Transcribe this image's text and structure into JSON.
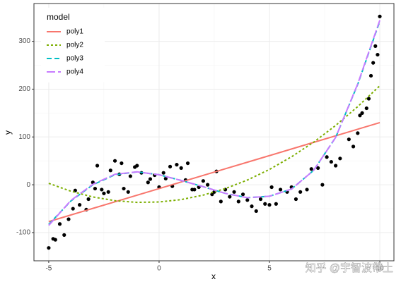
{
  "chart_data": {
    "type": "scatter",
    "x_label": "x",
    "y_label": "y",
    "xlim": [
      -5.67,
      10.64
    ],
    "ylim": [
      -159,
      379
    ],
    "xticks": [
      -5,
      0,
      5,
      10
    ],
    "yticks": [
      -100,
      0,
      100,
      200,
      300
    ],
    "grid": true,
    "legend_title": "model",
    "legend_position": "top-left",
    "point_color": "#000000",
    "points": {
      "x": [
        -5,
        -4.8,
        -4.7,
        -4.5,
        -4.3,
        -4.1,
        -3.9,
        -3.8,
        -3.6,
        -3.3,
        -3.2,
        -3,
        -2.9,
        -2.8,
        -2.6,
        -2.5,
        -2.3,
        -2.2,
        -2,
        -1.8,
        -1.7,
        -1.6,
        -1.4,
        -1.3,
        -1.1,
        -1,
        -0.8,
        -0.5,
        -0.4,
        -0.2,
        0,
        0.2,
        0.3,
        0.5,
        0.6,
        0.8,
        1,
        1.2,
        1.3,
        1.5,
        1.6,
        1.8,
        2,
        2.2,
        2.4,
        2.5,
        2.6,
        2.8,
        3,
        3.2,
        3.4,
        3.6,
        3.8,
        4,
        4.2,
        4.4,
        4.6,
        4.8,
        5,
        5.1,
        5.3,
        5.5,
        5.8,
        6,
        6.2,
        6.4,
        6.7,
        6.9,
        7.2,
        7.4,
        7.6,
        7.8,
        8,
        8.2,
        8.6,
        8.8,
        9,
        9.1,
        9.2,
        9.4,
        9.5,
        9.6,
        9.7,
        9.8,
        9.9,
        10
      ],
      "y": [
        -132,
        -113,
        -115,
        -82,
        -105,
        -72,
        -50,
        -12,
        -42,
        -52,
        -30,
        5,
        -8,
        40,
        -10,
        -18,
        -15,
        30,
        50,
        22,
        45,
        -8,
        -15,
        18,
        37,
        40,
        25,
        5,
        12,
        20,
        -5,
        25,
        13,
        38,
        -3,
        42,
        35,
        10,
        45,
        -10,
        -10,
        -5,
        8,
        0,
        -20,
        -15,
        28,
        -35,
        -10,
        -25,
        -15,
        -35,
        -20,
        -32,
        -45,
        -55,
        -30,
        -40,
        -42,
        -5,
        -40,
        -10,
        -15,
        -5,
        -30,
        -15,
        -10,
        33,
        35,
        0,
        58,
        48,
        40,
        55,
        95,
        80,
        108,
        145,
        150,
        160,
        180,
        228,
        255,
        290,
        272,
        352
      ]
    },
    "x": [
      -5,
      -4,
      -3,
      -2,
      -1,
      0,
      1,
      2,
      3,
      4,
      5,
      6,
      7,
      8,
      9,
      10
    ],
    "series": [
      {
        "name": "poly1",
        "color": "#F8766D",
        "dash": "solid",
        "values": [
          -77,
          -63.2,
          -49.4,
          -35.6,
          -21.8,
          -8,
          5.8,
          19.6,
          33.4,
          47.2,
          61,
          74.8,
          88.6,
          102.4,
          116.2,
          130
        ]
      },
      {
        "name": "poly2",
        "color": "#7CAE00",
        "dash": "dotted",
        "values": [
          3,
          -13.4,
          -25.5,
          -33.3,
          -36.8,
          -36,
          -31,
          -21.6,
          -8,
          9.9,
          32,
          58.5,
          89,
          124,
          163.5,
          207
        ]
      },
      {
        "name": "poly3",
        "color": "#00BFC4",
        "dash": "dashed",
        "values": [
          -83,
          -34,
          0,
          21,
          27,
          21,
          9,
          -4,
          -18,
          -27,
          -24,
          -9,
          30,
          99,
          210,
          342
        ]
      },
      {
        "name": "poly4",
        "color": "#C77CFF",
        "dash": "longdash",
        "values": [
          -85,
          -33,
          1,
          22,
          27,
          21,
          9,
          -4,
          -18,
          -27,
          -24,
          -9,
          30,
          99,
          211,
          344
        ]
      }
    ],
    "watermark": "知乎 @宇智波帶土"
  }
}
